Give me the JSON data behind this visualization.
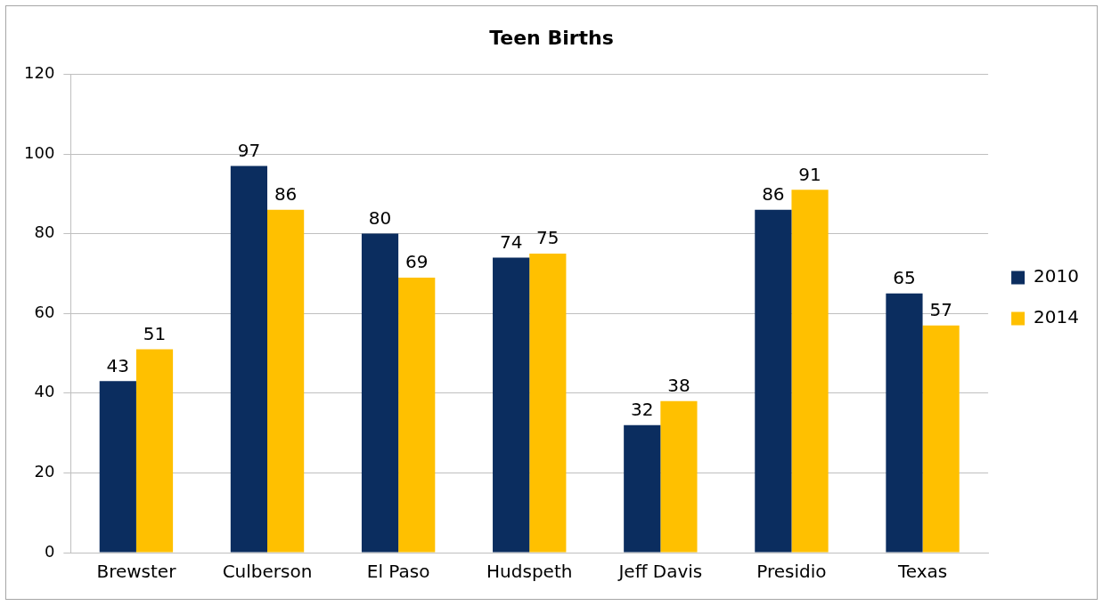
{
  "chart_data": {
    "type": "bar",
    "title": "Teen Births",
    "categories": [
      "Brewster",
      "Culberson",
      "El Paso",
      "Hudspeth",
      "Jeff Davis",
      "Presidio",
      "Texas"
    ],
    "series": [
      {
        "name": "2010",
        "color": "#0b2d5f",
        "values": [
          43,
          97,
          80,
          74,
          32,
          86,
          65
        ]
      },
      {
        "name": "2014",
        "color": "#ffc000",
        "values": [
          51,
          86,
          69,
          75,
          38,
          91,
          57
        ]
      }
    ],
    "ylim": [
      0,
      120
    ],
    "yticks": [
      0,
      20,
      40,
      60,
      80,
      100,
      120
    ],
    "grid": "y",
    "legend": "right",
    "data_labels": true
  }
}
